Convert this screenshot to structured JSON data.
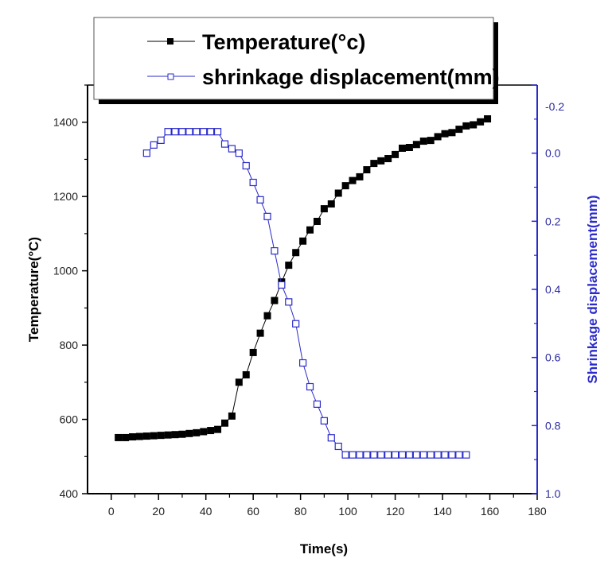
{
  "chart_data": {
    "type": "line",
    "xlabel": "Time(s)",
    "ylabel": "Temperature(°C)",
    "y2label": "Shrinkage displacement(mm)",
    "xlim": [
      -10,
      180
    ],
    "ylim": [
      400,
      1500
    ],
    "y2lim": [
      -0.2,
      1.0
    ],
    "y2_inverted": true,
    "xticks": [
      0,
      20,
      40,
      60,
      80,
      100,
      120,
      140,
      160,
      180
    ],
    "yticks": [
      400,
      600,
      800,
      1000,
      1200,
      1400
    ],
    "y2ticks": [
      "-0.2",
      "0.0",
      "0.2",
      "0.4",
      "0.6",
      "0.8",
      "1.0"
    ],
    "grid": false,
    "legend_placement": "top",
    "series": [
      {
        "name": "Temperature(°c)",
        "axis": "left",
        "marker": "filled-square",
        "color": "#000000",
        "x": [
          3,
          6,
          9,
          12,
          15,
          18,
          21,
          24,
          27,
          30,
          33,
          36,
          39,
          42,
          45,
          48,
          51,
          54,
          57,
          60,
          63,
          66,
          69,
          72,
          75,
          78,
          81,
          84,
          87,
          90,
          93,
          96,
          99,
          102,
          105,
          108,
          111,
          114,
          117,
          120,
          123,
          126,
          129,
          132,
          135,
          138,
          141,
          144,
          147,
          150,
          153,
          156,
          159
        ],
        "values": [
          551,
          551,
          553,
          554,
          555,
          556,
          557,
          558,
          559,
          560,
          562,
          564,
          567,
          570,
          573,
          590,
          609,
          700,
          720,
          780,
          832,
          879,
          920,
          970,
          1015,
          1049,
          1080,
          1110,
          1133,
          1167,
          1180,
          1209,
          1229,
          1243,
          1253,
          1272,
          1289,
          1296,
          1302,
          1313,
          1330,
          1332,
          1340,
          1349,
          1351,
          1361,
          1369,
          1372,
          1381,
          1390,
          1393,
          1401,
          1409
        ]
      },
      {
        "name": "shrinkage displacement(mm)",
        "axis": "right",
        "marker": "open-square",
        "color": "#2b2bcc",
        "x": [
          15,
          18,
          21,
          24,
          27,
          30,
          33,
          36,
          39,
          42,
          45,
          48,
          51,
          54,
          57,
          60,
          63,
          66,
          69,
          72,
          75,
          78,
          81,
          84,
          87,
          90,
          93,
          96,
          99,
          102,
          105,
          108,
          111,
          114,
          117,
          120,
          123,
          126,
          129,
          132,
          135,
          138,
          141,
          144,
          147,
          150
        ],
        "values": [
          0.0,
          -0.024,
          -0.038,
          -0.063,
          -0.063,
          -0.063,
          -0.063,
          -0.063,
          -0.063,
          -0.063,
          -0.063,
          -0.027,
          -0.013,
          0.0,
          0.037,
          0.086,
          0.137,
          0.186,
          0.287,
          0.387,
          0.437,
          0.501,
          0.616,
          0.686,
          0.737,
          0.786,
          0.836,
          0.861,
          0.886,
          0.886,
          0.886,
          0.886,
          0.886,
          0.886,
          0.886,
          0.886,
          0.886,
          0.886,
          0.886,
          0.886,
          0.886,
          0.886,
          0.886,
          0.886,
          0.886,
          0.886
        ]
      }
    ]
  }
}
